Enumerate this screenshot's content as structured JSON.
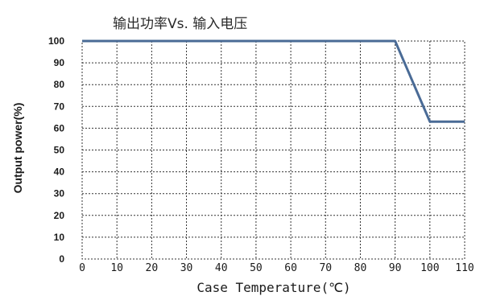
{
  "chart_data": {
    "type": "line",
    "title": "输出功率Vs. 输入电压",
    "xlabel": "Case Temperature(℃)",
    "ylabel": "Output power(%)",
    "x_ticks": [
      "0",
      "10",
      "20",
      "30",
      "40",
      "50",
      "60",
      "70",
      "80",
      "90",
      "100",
      "110"
    ],
    "y_ticks": [
      "0",
      "10",
      "20",
      "30",
      "40",
      "50",
      "60",
      "70",
      "80",
      "90",
      "100"
    ],
    "xlim": [
      0,
      110
    ],
    "ylim": [
      0,
      100
    ],
    "grid": true,
    "series": [
      {
        "x": [
          0,
          90,
          100,
          110
        ],
        "y": [
          100,
          100,
          63,
          63
        ]
      }
    ],
    "line_color": "#4a6b96"
  }
}
